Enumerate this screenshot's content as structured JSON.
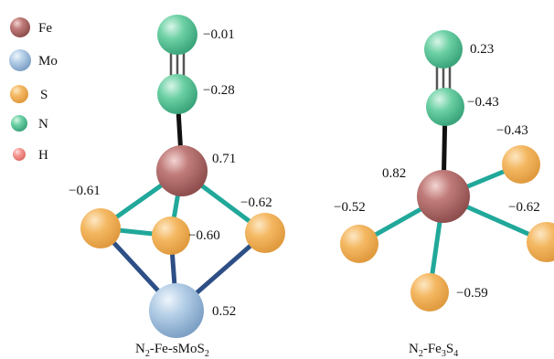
{
  "legend": {
    "items": [
      {
        "label": "Fe",
        "color": "#b5706f",
        "icon": "fe-atom-icon"
      },
      {
        "label": "Mo",
        "color": "#a9c6e2",
        "icon": "mo-atom-icon"
      },
      {
        "label": "S",
        "color": "#f3b765",
        "icon": "s-atom-icon"
      },
      {
        "label": "N",
        "color": "#5cc59a",
        "icon": "n-atom-icon"
      },
      {
        "label": "H",
        "color": "#f48d87",
        "icon": "h-atom-icon"
      }
    ]
  },
  "left": {
    "n_top": "−0.01",
    "n_mid": "−0.28",
    "fe": "0.71",
    "s_left": "−0.61",
    "s_center": "−0.60",
    "s_right": "−0.62",
    "mo": "0.52",
    "caption": {
      "p1": "N",
      "s1": "2",
      "p2": "-Fe-sMoS",
      "s2": "2"
    }
  },
  "right": {
    "n_top": "0.23",
    "n_mid": "−0.43",
    "fe": "0.82",
    "s_upper_right": "−0.43",
    "s_left": "−0.52",
    "s_right": "−0.62",
    "s_bottom": "−0.59",
    "caption": {
      "p1": "N",
      "s1": "2",
      "p2": "-Fe",
      "s2": "3",
      "p3": "S",
      "s3": "4"
    }
  },
  "colors": {
    "fe": "#b5706f",
    "mo": "#a9c6e2",
    "s": "#f3b765",
    "n": "#5cc59a",
    "h": "#f48d87",
    "bond_teal": "#20a89a",
    "bond_navy": "#2d4f86",
    "bond_black": "#111111"
  }
}
